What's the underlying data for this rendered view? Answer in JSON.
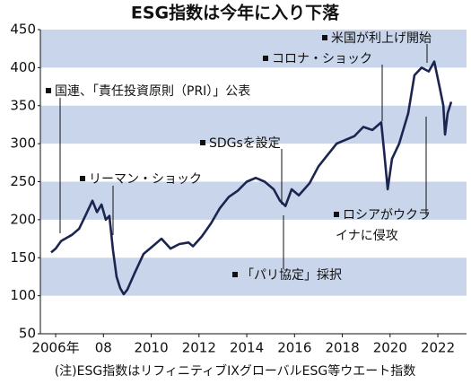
{
  "chart_data": {
    "type": "line",
    "title": "ESG指数は今年に入り下落",
    "x": [
      2005.81,
      2006.0,
      2006.23,
      2006.45,
      2006.68,
      2006.98,
      2007.24,
      2007.54,
      2007.73,
      2007.92,
      2008.1,
      2008.25,
      2008.4,
      2008.55,
      2008.7,
      2008.85,
      2009.0,
      2009.31,
      2009.68,
      2010.06,
      2010.43,
      2010.81,
      2011.18,
      2011.56,
      2011.75,
      2012.12,
      2012.5,
      2012.87,
      2013.25,
      2013.62,
      2014.0,
      2014.38,
      2014.75,
      2015.13,
      2015.39,
      2015.62,
      2015.88,
      2016.18,
      2016.63,
      2017.0,
      2017.38,
      2017.76,
      2018.13,
      2018.51,
      2018.88,
      2019.26,
      2019.63,
      2019.75,
      2019.9,
      2020.08,
      2020.38,
      2020.76,
      2021.02,
      2021.32,
      2021.62,
      2021.85,
      2022.07,
      2022.23,
      2022.3,
      2022.41,
      2022.56
    ],
    "values": [
      157,
      162,
      172,
      176,
      180,
      188,
      205,
      225,
      210,
      220,
      200,
      205,
      160,
      125,
      110,
      102,
      108,
      130,
      155,
      165,
      175,
      162,
      168,
      170,
      165,
      178,
      195,
      215,
      230,
      238,
      250,
      255,
      250,
      240,
      225,
      218,
      240,
      232,
      248,
      270,
      285,
      300,
      305,
      310,
      322,
      318,
      328,
      290,
      240,
      280,
      300,
      340,
      390,
      400,
      395,
      408,
      375,
      350,
      312,
      340,
      355
    ],
    "color": "#1c2550",
    "xlim": [
      2005.36,
      2023.2
    ],
    "xticks": [
      {
        "value": 2006,
        "label": "2006年"
      },
      {
        "value": 2008,
        "label": "08"
      },
      2010,
      2012,
      2014,
      2016,
      2018,
      2020,
      2022
    ],
    "ylim": [
      50,
      450
    ],
    "yticks": [
      50,
      100,
      150,
      200,
      250,
      300,
      350,
      400,
      450
    ],
    "band_color": "#c8d5eb",
    "annotations": [
      "国連、「責任投資原則（PRI）」公表",
      "リーマン・ショック",
      "SDGsを設定",
      "「パリ協定」採択",
      "コロナ・ショック",
      "米国が利上げ開始",
      [
        "ロシアがウクラ",
        "イナに侵攻"
      ]
    ],
    "note": "(注)ESG指数はリフィニティブIXグローバルESG等ウエート指数"
  }
}
